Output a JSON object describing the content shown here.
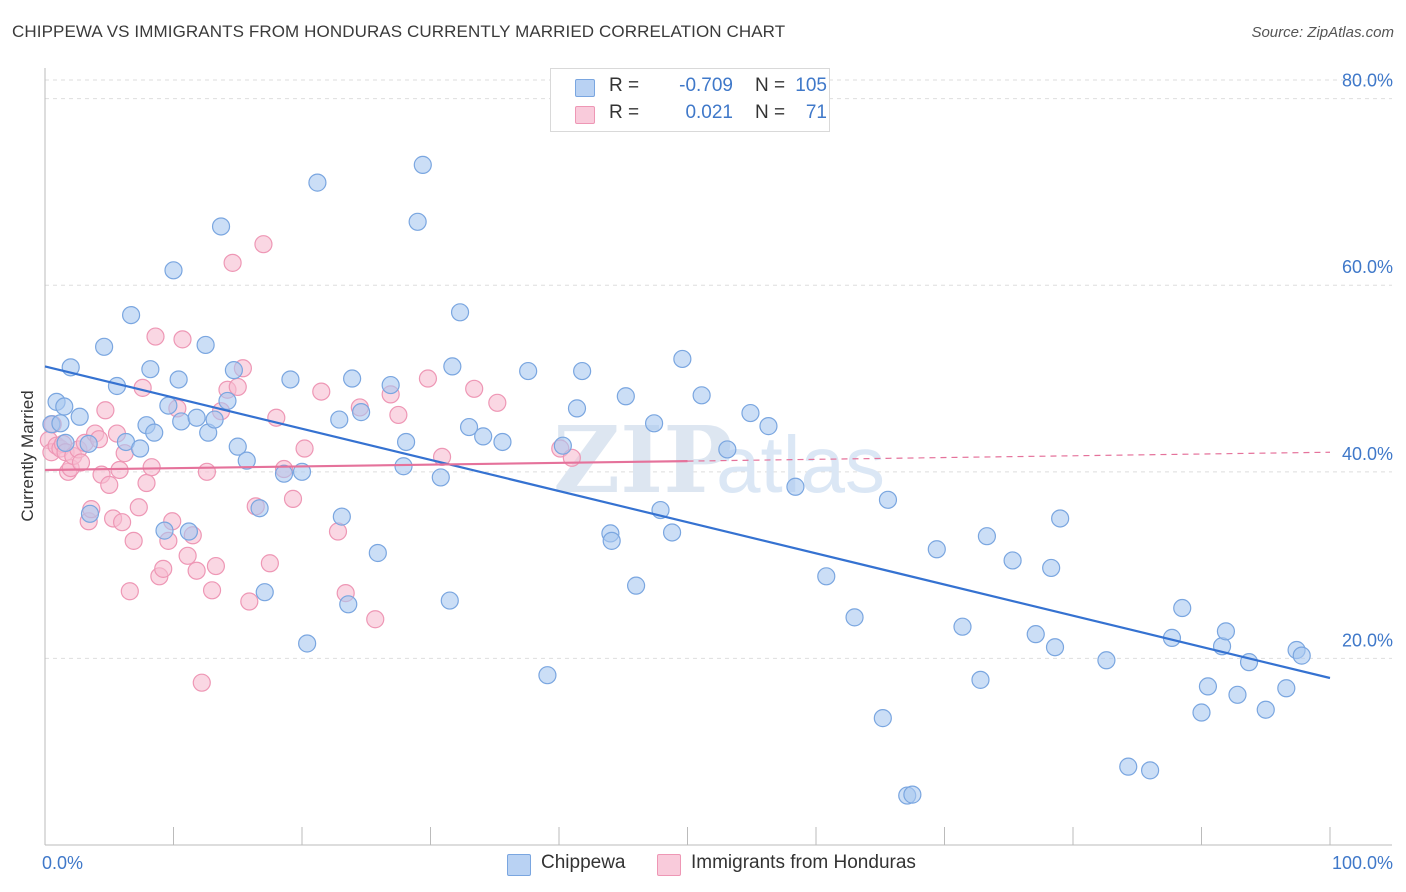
{
  "title": "CHIPPEWA VS IMMIGRANTS FROM HONDURAS CURRENTLY MARRIED CORRELATION CHART",
  "source": "Source: ZipAtlas.com",
  "watermark": {
    "bold": "ZIP",
    "light": "atlas"
  },
  "colors": {
    "blue_fill": "#a9c8f0",
    "blue_stroke": "#7aa6e0",
    "blue_line": "#3572d1",
    "pink_fill": "#f7bdd0",
    "pink_stroke": "#ee97b5",
    "pink_line": "#e5729b",
    "axis_text": "#3f78c9",
    "grid": "#dedede"
  },
  "legend_top": {
    "rows": [
      {
        "r_label": "R =",
        "r_value": "-0.709",
        "n_label": "N =",
        "n_value": "105"
      },
      {
        "r_label": "R =",
        "r_value": "0.021",
        "n_label": "N =",
        "n_value": "71"
      }
    ]
  },
  "legend_bottom": {
    "items": [
      "Chippewa",
      "Immigrants from Honduras"
    ]
  },
  "chart_data": {
    "type": "scatter",
    "title": "CHIPPEWA VS IMMIGRANTS FROM HONDURAS CURRENTLY MARRIED CORRELATION CHART",
    "xlabel": "",
    "ylabel": "Currently Married",
    "xlim": [
      0,
      100
    ],
    "ylim": [
      0,
      82
    ],
    "x_tick_labels": [
      "0.0%",
      "100.0%"
    ],
    "y_ticks": [
      20,
      40,
      60,
      80
    ],
    "y_tick_labels": [
      "20.0%",
      "40.0%",
      "60.0%",
      "80.0%"
    ],
    "grid": "horizontal dashed",
    "legend_position": "bottom",
    "series": [
      {
        "name": "Chippewa",
        "color": "#a9c8f0",
        "trend": {
          "x": [
            0,
            100
          ],
          "y": [
            51.3,
            17.9
          ]
        },
        "points": [
          [
            0.5,
            45.1
          ],
          [
            0.9,
            47.5
          ],
          [
            1.2,
            45.2
          ],
          [
            1.5,
            47.0
          ],
          [
            1.6,
            43.1
          ],
          [
            2.0,
            51.2
          ],
          [
            2.7,
            45.9
          ],
          [
            3.4,
            43.0
          ],
          [
            3.5,
            35.5
          ],
          [
            4.6,
            53.4
          ],
          [
            5.6,
            49.2
          ],
          [
            6.3,
            43.2
          ],
          [
            6.7,
            56.8
          ],
          [
            7.4,
            42.5
          ],
          [
            7.9,
            45.0
          ],
          [
            8.2,
            51.0
          ],
          [
            8.5,
            44.2
          ],
          [
            9.3,
            33.7
          ],
          [
            9.6,
            47.1
          ],
          [
            10.0,
            61.6
          ],
          [
            10.4,
            49.9
          ],
          [
            10.6,
            45.4
          ],
          [
            11.2,
            33.6
          ],
          [
            11.8,
            45.8
          ],
          [
            12.5,
            53.6
          ],
          [
            12.7,
            44.2
          ],
          [
            13.2,
            45.6
          ],
          [
            13.7,
            66.3
          ],
          [
            14.2,
            47.6
          ],
          [
            14.7,
            50.9
          ],
          [
            15.0,
            42.7
          ],
          [
            15.7,
            41.2
          ],
          [
            16.7,
            36.1
          ],
          [
            17.1,
            27.1
          ],
          [
            18.6,
            39.8
          ],
          [
            19.1,
            49.9
          ],
          [
            20.0,
            40.0
          ],
          [
            20.4,
            21.6
          ],
          [
            21.2,
            71.0
          ],
          [
            22.9,
            45.6
          ],
          [
            23.1,
            35.2
          ],
          [
            23.6,
            25.8
          ],
          [
            23.9,
            50.0
          ],
          [
            24.6,
            46.4
          ],
          [
            25.9,
            31.3
          ],
          [
            26.9,
            49.3
          ],
          [
            27.9,
            40.6
          ],
          [
            28.1,
            43.2
          ],
          [
            29.0,
            66.8
          ],
          [
            29.4,
            72.9
          ],
          [
            30.8,
            39.4
          ],
          [
            31.5,
            26.2
          ],
          [
            31.7,
            51.3
          ],
          [
            32.3,
            57.1
          ],
          [
            33.0,
            44.8
          ],
          [
            34.1,
            43.8
          ],
          [
            35.6,
            43.2
          ],
          [
            37.6,
            50.8
          ],
          [
            39.1,
            18.2
          ],
          [
            40.3,
            42.8
          ],
          [
            41.4,
            46.8
          ],
          [
            41.8,
            50.8
          ],
          [
            44.0,
            33.4
          ],
          [
            44.1,
            32.6
          ],
          [
            45.2,
            48.1
          ],
          [
            46.0,
            27.8
          ],
          [
            47.4,
            45.2
          ],
          [
            47.9,
            35.9
          ],
          [
            48.8,
            33.5
          ],
          [
            49.6,
            52.1
          ],
          [
            51.1,
            48.2
          ],
          [
            53.1,
            42.4
          ],
          [
            54.9,
            46.3
          ],
          [
            56.3,
            44.9
          ],
          [
            58.4,
            38.4
          ],
          [
            60.8,
            28.8
          ],
          [
            63.0,
            24.4
          ],
          [
            65.2,
            13.6
          ],
          [
            65.6,
            37.0
          ],
          [
            67.1,
            5.3
          ],
          [
            67.5,
            5.4
          ],
          [
            69.4,
            31.7
          ],
          [
            71.4,
            23.4
          ],
          [
            72.8,
            17.7
          ],
          [
            73.3,
            33.1
          ],
          [
            75.3,
            30.5
          ],
          [
            77.1,
            22.6
          ],
          [
            78.6,
            21.2
          ],
          [
            78.3,
            29.7
          ],
          [
            79.0,
            35.0
          ],
          [
            82.6,
            19.8
          ],
          [
            84.3,
            8.4
          ],
          [
            86.0,
            8.0
          ],
          [
            87.7,
            22.2
          ],
          [
            88.5,
            25.4
          ],
          [
            90.0,
            14.2
          ],
          [
            90.5,
            17.0
          ],
          [
            91.6,
            21.3
          ],
          [
            91.9,
            22.9
          ],
          [
            92.8,
            16.1
          ],
          [
            93.7,
            19.6
          ],
          [
            95.0,
            14.5
          ],
          [
            96.6,
            16.8
          ],
          [
            97.4,
            20.9
          ],
          [
            97.8,
            20.3
          ]
        ]
      },
      {
        "name": "Immigrants from Honduras",
        "color": "#f7bdd0",
        "trend": {
          "x": [
            0,
            100
          ],
          "y": [
            40.2,
            42.1
          ]
        },
        "points": [
          [
            0.3,
            43.4
          ],
          [
            0.5,
            42.1
          ],
          [
            0.6,
            45.1
          ],
          [
            0.9,
            42.8
          ],
          [
            1.2,
            42.5
          ],
          [
            1.4,
            43.0
          ],
          [
            1.6,
            42.1
          ],
          [
            1.8,
            40.0
          ],
          [
            2.0,
            40.4
          ],
          [
            2.2,
            41.7
          ],
          [
            2.6,
            42.4
          ],
          [
            2.8,
            41.0
          ],
          [
            3.1,
            43.1
          ],
          [
            3.4,
            34.7
          ],
          [
            3.6,
            36.0
          ],
          [
            3.9,
            44.1
          ],
          [
            4.2,
            43.5
          ],
          [
            4.4,
            39.7
          ],
          [
            4.7,
            46.6
          ],
          [
            5.0,
            38.6
          ],
          [
            5.3,
            35.0
          ],
          [
            5.6,
            44.1
          ],
          [
            5.8,
            40.2
          ],
          [
            6.0,
            34.6
          ],
          [
            6.2,
            42.0
          ],
          [
            6.6,
            27.2
          ],
          [
            6.9,
            32.6
          ],
          [
            7.3,
            36.2
          ],
          [
            7.6,
            49.0
          ],
          [
            7.9,
            38.8
          ],
          [
            8.3,
            40.5
          ],
          [
            8.6,
            54.5
          ],
          [
            8.9,
            28.8
          ],
          [
            9.2,
            29.6
          ],
          [
            9.6,
            32.6
          ],
          [
            9.9,
            34.7
          ],
          [
            10.3,
            46.8
          ],
          [
            10.7,
            54.2
          ],
          [
            11.1,
            31.0
          ],
          [
            11.5,
            33.2
          ],
          [
            11.8,
            29.4
          ],
          [
            12.2,
            17.4
          ],
          [
            12.6,
            40.0
          ],
          [
            13.0,
            27.3
          ],
          [
            13.3,
            29.9
          ],
          [
            13.7,
            46.5
          ],
          [
            14.2,
            48.8
          ],
          [
            14.6,
            62.4
          ],
          [
            15.0,
            49.1
          ],
          [
            15.4,
            51.1
          ],
          [
            15.9,
            26.1
          ],
          [
            16.4,
            36.3
          ],
          [
            17.0,
            64.4
          ],
          [
            17.5,
            30.2
          ],
          [
            18.0,
            45.8
          ],
          [
            18.6,
            40.3
          ],
          [
            19.3,
            37.1
          ],
          [
            20.2,
            42.5
          ],
          [
            21.5,
            48.6
          ],
          [
            22.8,
            33.6
          ],
          [
            23.4,
            27.0
          ],
          [
            24.5,
            46.9
          ],
          [
            25.7,
            24.2
          ],
          [
            26.9,
            48.3
          ],
          [
            27.5,
            46.1
          ],
          [
            29.8,
            50.0
          ],
          [
            30.9,
            41.6
          ],
          [
            33.4,
            48.9
          ],
          [
            35.2,
            47.4
          ],
          [
            40.1,
            42.5
          ],
          [
            41.0,
            41.5
          ]
        ]
      }
    ]
  }
}
